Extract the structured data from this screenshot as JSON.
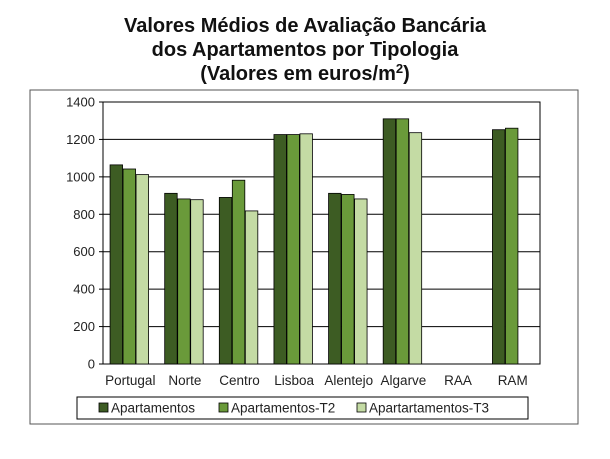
{
  "chart_data": {
    "type": "bar",
    "title_lines": [
      "Valores Médios de Avaliação Bancária",
      "dos Apartamentos por Tipologia"
    ],
    "title_unit_prefix": "(Valores em euros/m",
    "title_unit_sup": "2",
    "title_unit_suffix": ")",
    "categories": [
      "Portugal",
      "Norte",
      "Centro",
      "Lisboa",
      "Alentejo",
      "Algarve",
      "RAA",
      "RAM"
    ],
    "series": [
      {
        "name": "Apartamentos",
        "color": "#3d5c23",
        "values": [
          1064,
          912,
          890,
          1226,
          912,
          1310,
          null,
          1252
        ]
      },
      {
        "name": "Apartamentos-T2",
        "color": "#6a9a3a",
        "values": [
          1042,
          882,
          982,
          1226,
          906,
          1310,
          null,
          1260
        ]
      },
      {
        "name": "Apartartamentos-T3",
        "color": "#c4dba4",
        "values": [
          1012,
          878,
          818,
          1230,
          882,
          1236,
          null,
          null
        ]
      }
    ],
    "ylim": [
      0,
      1400
    ],
    "yticks": [
      0,
      200,
      400,
      600,
      800,
      1000,
      1200,
      1400
    ],
    "grid": true,
    "legend_position": "bottom"
  }
}
